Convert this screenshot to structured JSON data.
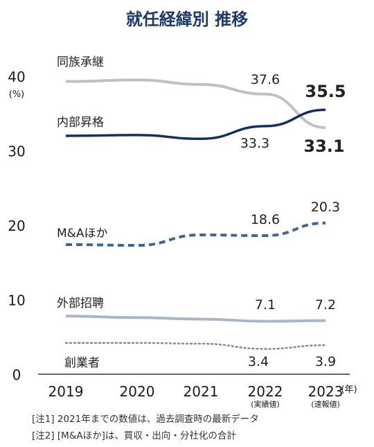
{
  "chart_data": {
    "type": "line",
    "title": "就任経緯別 推移",
    "ylabel": "(%)",
    "x_unit": "(年)",
    "categories": [
      "2019",
      "2020",
      "2021",
      "2022",
      "2023"
    ],
    "category_sublabels": [
      "",
      "",
      "",
      "(実績値)",
      "(速報値)"
    ],
    "ylim": [
      0,
      40
    ],
    "yticks": [
      "0",
      "10",
      "20",
      "30",
      "40"
    ],
    "grid": false,
    "legend": "inline labels",
    "series": [
      {
        "name": "同族承継",
        "values": [
          39.3,
          39.5,
          38.9,
          37.6,
          33.1
        ],
        "color": "#c0c0c4",
        "style": "solid",
        "labels": {
          "3": "37.6",
          "4": "33.1"
        }
      },
      {
        "name": "内部昇格",
        "values": [
          32.0,
          32.1,
          31.6,
          33.3,
          35.5
        ],
        "color": "#14305e",
        "style": "solid",
        "labels": {
          "3": "33.3",
          "4": "35.5"
        }
      },
      {
        "name": "M&Aほか",
        "values": [
          17.4,
          17.3,
          18.7,
          18.6,
          20.3
        ],
        "color": "#3d6596",
        "style": "dashed",
        "labels": {
          "3": "18.6",
          "4": "20.3"
        }
      },
      {
        "name": "外部招聘",
        "values": [
          7.8,
          7.6,
          7.4,
          7.1,
          7.2
        ],
        "color": "#a9b6c8",
        "style": "solid",
        "labels": {
          "3": "7.1",
          "4": "7.2"
        }
      },
      {
        "name": "創業者",
        "values": [
          4.2,
          4.2,
          4.1,
          3.4,
          3.9
        ],
        "color": "#8a8a8a",
        "style": "dotted",
        "labels": {
          "3": "3.4",
          "4": "3.9"
        }
      }
    ]
  },
  "notes": [
    "[注1] 2021年までの数値は、過去調査時の最新データ",
    "[注2] [M&Aほか]は、買収・出向・分社化の合計"
  ]
}
